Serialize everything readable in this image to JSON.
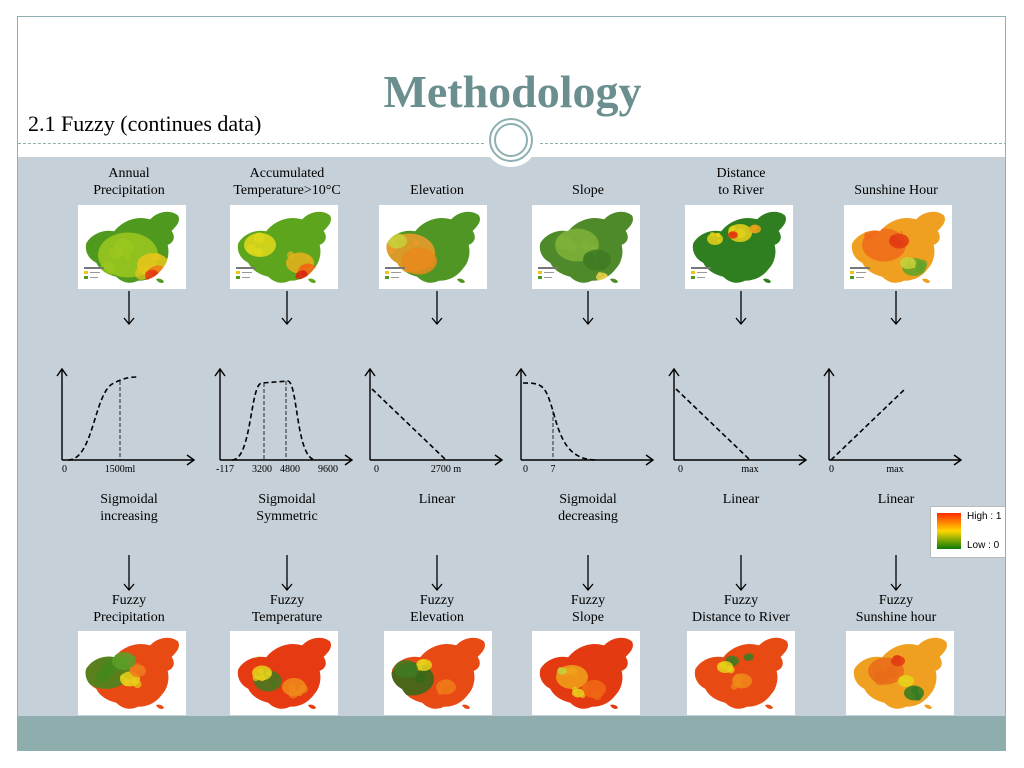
{
  "slide": {
    "title": "Methodology",
    "subtitle": "2.1 Fuzzy (continues data)"
  },
  "colors": {
    "title": "#6b8e8e",
    "panel": "#c5d0d8",
    "footer": "#8fadad",
    "rule": "#8fb0b0"
  },
  "columns": [
    {
      "id": "precip",
      "input_label": [
        "Annual",
        "Precipitation"
      ],
      "function_label": [
        "Sigmoidal",
        "increasing"
      ],
      "fuzzy_label": [
        "Fuzzy",
        "Precipitation"
      ],
      "ticks": [
        "0",
        "1500ml"
      ],
      "curve": "sigmoid-increasing",
      "input_map_icon": "precipitation-map-icon",
      "fuzzy_map_icon": "fuzzy-precipitation-map-icon"
    },
    {
      "id": "temp",
      "input_label": [
        "Accumulated",
        "Temperature>10°C"
      ],
      "function_label": [
        "Sigmoidal",
        "Symmetric"
      ],
      "fuzzy_label": [
        "Fuzzy",
        "Temperature"
      ],
      "ticks": [
        "-117",
        "3200",
        "4800",
        "9600"
      ],
      "curve": "sigmoid-symmetric",
      "input_map_icon": "temperature-map-icon",
      "fuzzy_map_icon": "fuzzy-temperature-map-icon"
    },
    {
      "id": "elev",
      "input_label": [
        "Elevation"
      ],
      "function_label": [
        "Linear"
      ],
      "fuzzy_label": [
        "Fuzzy",
        "Elevation"
      ],
      "ticks": [
        "0",
        "2700 m"
      ],
      "curve": "linear-decreasing",
      "input_map_icon": "elevation-map-icon",
      "fuzzy_map_icon": "fuzzy-elevation-map-icon"
    },
    {
      "id": "slope",
      "input_label": [
        "Slope"
      ],
      "function_label": [
        "Sigmoidal",
        "decreasing"
      ],
      "fuzzy_label": [
        "Fuzzy",
        "Slope"
      ],
      "ticks": [
        "0",
        "7"
      ],
      "curve": "sigmoid-decreasing",
      "input_map_icon": "slope-map-icon",
      "fuzzy_map_icon": "fuzzy-slope-map-icon"
    },
    {
      "id": "river",
      "input_label": [
        "Distance",
        "to River"
      ],
      "function_label": [
        "Linear"
      ],
      "fuzzy_label": [
        "Fuzzy",
        "Distance to River"
      ],
      "ticks": [
        "0",
        "max"
      ],
      "curve": "linear-decreasing",
      "input_map_icon": "river-distance-map-icon",
      "fuzzy_map_icon": "fuzzy-river-distance-map-icon"
    },
    {
      "id": "sun",
      "input_label": [
        "Sunshine Hour"
      ],
      "function_label": [
        "Linear"
      ],
      "fuzzy_label": [
        "Fuzzy",
        "Sunshine hour"
      ],
      "ticks": [
        "0",
        "max"
      ],
      "curve": "linear-increasing",
      "input_map_icon": "sunshine-map-icon",
      "fuzzy_map_icon": "fuzzy-sunshine-map-icon"
    }
  ],
  "legend": {
    "high": "High : 1",
    "low": "Low : 0",
    "gradient": [
      "#ff2a00",
      "#ffd700",
      "#0a7a0a"
    ]
  }
}
